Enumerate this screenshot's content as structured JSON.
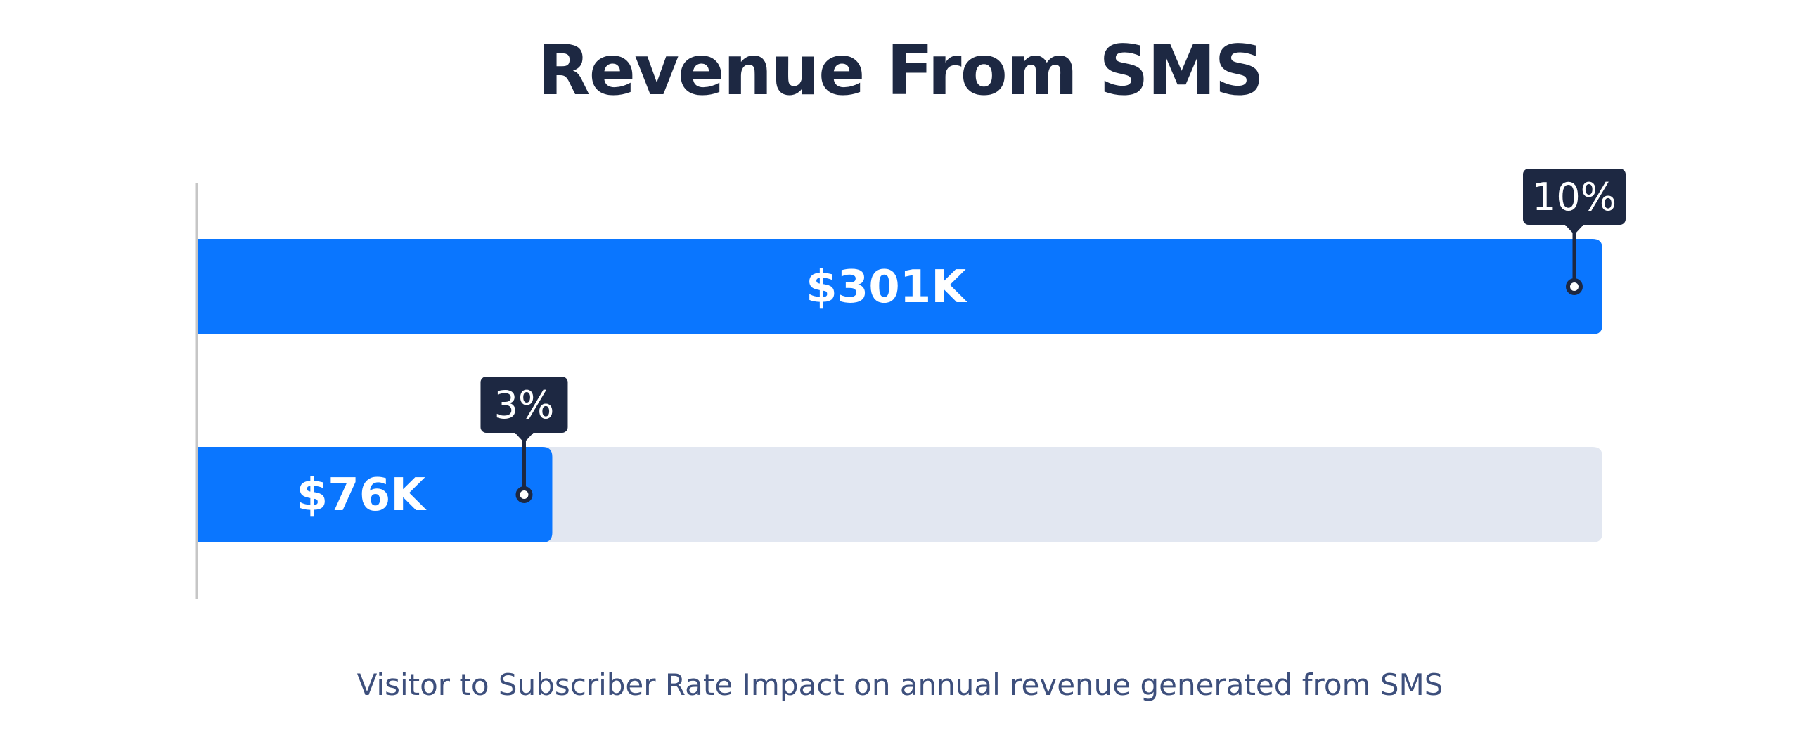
{
  "chart_data": {
    "type": "bar",
    "orientation": "horizontal",
    "title": "Revenue From SMS",
    "subtitle": "Visitor to Subscriber Rate Impact on annual revenue generated from SMS",
    "xlim": [
      0,
      301
    ],
    "bars": [
      {
        "value": 301,
        "value_label": "$301K",
        "rate_label": "10%"
      },
      {
        "value": 76,
        "value_label": "$76K",
        "rate_label": "3%"
      }
    ],
    "grid": false,
    "legend": "none"
  },
  "colors": {
    "bar": "#0a76ff",
    "track": "#e2e7f1",
    "tag": "#1d2842",
    "axis": "#c6c6c6",
    "title": "#1d2842",
    "subtitle": "#3d4f7c"
  }
}
